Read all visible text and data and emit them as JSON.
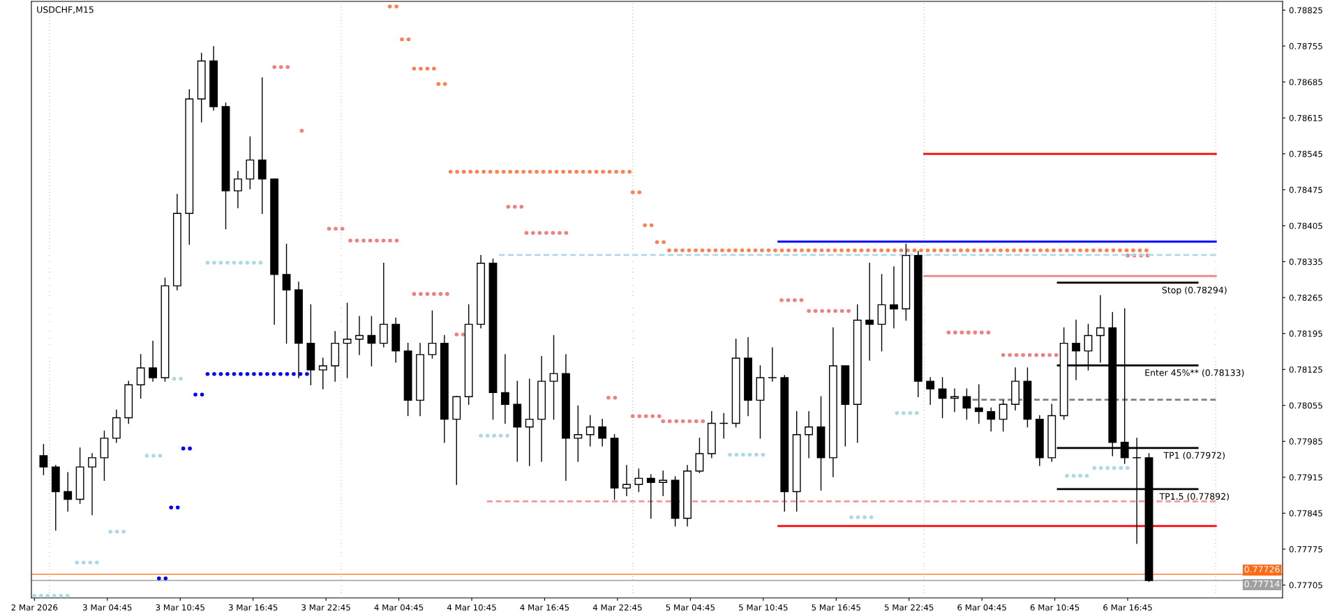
{
  "chart_data": {
    "type": "candlestick",
    "title": "USDCHF,M15",
    "color": "#000000",
    "x": [
      "2026-03-02T23:30",
      "2026-03-03T00:30",
      "2026-03-03T01:30",
      "2026-03-03T02:30",
      "2026-03-03T03:30",
      "2026-03-03T04:30",
      "2026-03-03T05:30",
      "2026-03-03T06:30",
      "2026-03-03T07:30",
      "2026-03-03T08:30",
      "2026-03-03T09:30",
      "2026-03-03T10:30",
      "2026-03-03T11:30",
      "2026-03-03T12:30",
      "2026-03-03T13:30",
      "2026-03-03T14:30",
      "2026-03-03T15:30",
      "2026-03-03T16:30",
      "2026-03-03T17:30",
      "2026-03-03T18:30",
      "2026-03-03T19:30",
      "2026-03-03T20:30",
      "2026-03-03T21:30",
      "2026-03-03T22:30",
      "2026-03-03T23:30",
      "2026-03-04T00:30",
      "2026-03-04T01:30",
      "2026-03-04T02:30",
      "2026-03-04T03:30",
      "2026-03-04T04:30",
      "2026-03-04T05:30",
      "2026-03-04T06:30",
      "2026-03-04T07:30",
      "2026-03-04T08:30",
      "2026-03-04T09:30",
      "2026-03-04T10:30",
      "2026-03-04T11:30",
      "2026-03-04T12:30",
      "2026-03-04T13:30",
      "2026-03-04T14:30",
      "2026-03-04T15:30",
      "2026-03-04T16:30",
      "2026-03-04T17:30",
      "2026-03-04T18:30",
      "2026-03-04T19:30",
      "2026-03-04T20:30",
      "2026-03-04T21:30",
      "2026-03-04T22:30",
      "2026-03-04T23:30",
      "2026-03-05T00:30",
      "2026-03-05T01:30",
      "2026-03-05T02:30",
      "2026-03-05T03:30",
      "2026-03-05T04:30",
      "2026-03-05T05:30",
      "2026-03-05T06:30",
      "2026-03-05T07:30",
      "2026-03-05T08:30",
      "2026-03-05T09:30",
      "2026-03-05T10:30",
      "2026-03-05T11:30",
      "2026-03-05T12:30",
      "2026-03-05T13:30",
      "2026-03-05T14:30",
      "2026-03-05T15:30",
      "2026-03-05T16:30",
      "2026-03-05T17:30",
      "2026-03-05T18:30",
      "2026-03-05T19:30",
      "2026-03-05T20:30",
      "2026-03-05T21:30",
      "2026-03-05T22:30",
      "2026-03-05T23:30",
      "2026-03-06T00:30",
      "2026-03-06T01:30",
      "2026-03-06T02:30",
      "2026-03-06T03:30",
      "2026-03-06T04:30",
      "2026-03-06T05:30",
      "2026-03-06T06:30",
      "2026-03-06T07:30",
      "2026-03-06T08:30",
      "2026-03-06T09:30",
      "2026-03-06T10:30",
      "2026-03-06T11:30",
      "2026-03-06T12:30",
      "2026-03-06T13:30",
      "2026-03-06T14:30",
      "2026-03-06T15:30",
      "2026-03-06T16:30",
      "2026-03-06T17:30",
      "2026-03-06T18:30"
    ],
    "ohlc": [
      [
        0.77957,
        0.77979,
        0.7792,
        0.77935
      ],
      [
        0.77935,
        0.77938,
        0.77812,
        0.77887
      ],
      [
        0.77887,
        0.77924,
        0.77849,
        0.77872
      ],
      [
        0.77872,
        0.77972,
        0.77864,
        0.77935
      ],
      [
        0.77935,
        0.77961,
        0.77842,
        0.77953
      ],
      [
        0.77953,
        0.78005,
        0.77909,
        0.77991
      ],
      [
        0.77991,
        0.78046,
        0.77983,
        0.78031
      ],
      [
        0.78031,
        0.78102,
        0.7802,
        0.78095
      ],
      [
        0.78095,
        0.78154,
        0.78069,
        0.78128
      ],
      [
        0.78128,
        0.7818,
        0.78102,
        0.78109
      ],
      [
        0.78109,
        0.78303,
        0.78102,
        0.78288
      ],
      [
        0.78288,
        0.78466,
        0.7828,
        0.78429
      ],
      [
        0.78429,
        0.7867,
        0.78369,
        0.78652
      ],
      [
        0.78652,
        0.78741,
        0.78607,
        0.78726
      ],
      [
        0.78726,
        0.78754,
        0.7863,
        0.78637
      ],
      [
        0.78637,
        0.78644,
        0.78399,
        0.78473
      ],
      [
        0.78473,
        0.78511,
        0.7844,
        0.78496
      ],
      [
        0.78496,
        0.78578,
        0.78477,
        0.78533
      ],
      [
        0.78533,
        0.78693,
        0.78429,
        0.78496
      ],
      [
        0.78496,
        0.78496,
        0.78213,
        0.7831
      ],
      [
        0.7831,
        0.78369,
        0.78176,
        0.7828
      ],
      [
        0.7828,
        0.78295,
        0.78109,
        0.78176
      ],
      [
        0.78176,
        0.78251,
        0.78095,
        0.78124
      ],
      [
        0.78124,
        0.78147,
        0.78087,
        0.78132
      ],
      [
        0.78132,
        0.78199,
        0.78102,
        0.78176
      ],
      [
        0.78176,
        0.78254,
        0.78109,
        0.78184
      ],
      [
        0.78184,
        0.78228,
        0.78154,
        0.78191
      ],
      [
        0.78191,
        0.78228,
        0.78132,
        0.78176
      ],
      [
        0.78176,
        0.78332,
        0.78169,
        0.78213
      ],
      [
        0.78213,
        0.78225,
        0.78139,
        0.78161
      ],
      [
        0.78161,
        0.78176,
        0.78035,
        0.78065
      ],
      [
        0.78065,
        0.78176,
        0.78035,
        0.78154
      ],
      [
        0.78154,
        0.78239,
        0.78147,
        0.78176
      ],
      [
        0.78176,
        0.78191,
        0.77983,
        0.78028
      ],
      [
        0.78028,
        0.78072,
        0.77901,
        0.78072
      ],
      [
        0.78072,
        0.78251,
        0.78057,
        0.78213
      ],
      [
        0.78213,
        0.78347,
        0.78206,
        0.78332
      ],
      [
        0.78332,
        0.7834,
        0.78028,
        0.7808
      ],
      [
        0.7808,
        0.78154,
        0.7802,
        0.78057
      ],
      [
        0.78057,
        0.78102,
        0.77946,
        0.78013
      ],
      [
        0.78013,
        0.78106,
        0.77938,
        0.78028
      ],
      [
        0.78028,
        0.7815,
        0.77946,
        0.78102
      ],
      [
        0.78102,
        0.78191,
        0.78028,
        0.78117
      ],
      [
        0.78117,
        0.78154,
        0.77909,
        0.77991
      ],
      [
        0.77991,
        0.78054,
        0.77946,
        0.77998
      ],
      [
        0.77998,
        0.78035,
        0.77976,
        0.78013
      ],
      [
        0.78013,
        0.78028,
        0.77976,
        0.77991
      ],
      [
        0.77991,
        0.77998,
        0.77872,
        0.77894
      ],
      [
        0.77894,
        0.77938,
        0.77879,
        0.77901
      ],
      [
        0.77901,
        0.77931,
        0.77887,
        0.77913
      ],
      [
        0.77913,
        0.7792,
        0.77835,
        0.77905
      ],
      [
        0.77905,
        0.77927,
        0.77879,
        0.77909
      ],
      [
        0.77909,
        0.77916,
        0.7782,
        0.77835
      ],
      [
        0.77835,
        0.77938,
        0.7782,
        0.77927
      ],
      [
        0.77927,
        0.77991,
        0.77924,
        0.77961
      ],
      [
        0.77961,
        0.78043,
        0.77953,
        0.7802
      ],
      [
        0.7802,
        0.78039,
        0.77991,
        0.7802
      ],
      [
        0.7802,
        0.78184,
        0.78013,
        0.78147
      ],
      [
        0.78147,
        0.78187,
        0.78035,
        0.78065
      ],
      [
        0.78065,
        0.78132,
        0.77991,
        0.78109
      ],
      [
        0.78109,
        0.78167,
        0.78102,
        0.78109
      ],
      [
        0.78109,
        0.78113,
        0.77849,
        0.77887
      ],
      [
        0.77887,
        0.78043,
        0.77849,
        0.77998
      ],
      [
        0.77998,
        0.78043,
        0.77953,
        0.78013
      ],
      [
        0.78013,
        0.78072,
        0.7789,
        0.77953
      ],
      [
        0.77953,
        0.78206,
        0.77916,
        0.78132
      ],
      [
        0.78132,
        0.78132,
        0.77976,
        0.78057
      ],
      [
        0.78057,
        0.78251,
        0.77983,
        0.78221
      ],
      [
        0.78221,
        0.78332,
        0.78143,
        0.78213
      ],
      [
        0.78213,
        0.7831,
        0.78161,
        0.78251
      ],
      [
        0.78251,
        0.78325,
        0.78206,
        0.78243
      ],
      [
        0.78243,
        0.78369,
        0.78221,
        0.78347
      ],
      [
        0.78347,
        0.78355,
        0.78072,
        0.78102
      ],
      [
        0.78102,
        0.78109,
        0.78057,
        0.78087
      ],
      [
        0.78087,
        0.78109,
        0.78031,
        0.78069
      ],
      [
        0.78069,
        0.78087,
        0.78043,
        0.78072
      ],
      [
        0.78072,
        0.78087,
        0.78028,
        0.7805
      ],
      [
        0.7805,
        0.78095,
        0.7802,
        0.78043
      ],
      [
        0.78043,
        0.7805,
        0.78005,
        0.78028
      ],
      [
        0.78028,
        0.78065,
        0.78005,
        0.78057
      ],
      [
        0.78057,
        0.78128,
        0.78046,
        0.78102
      ],
      [
        0.78102,
        0.78128,
        0.78013,
        0.78028
      ],
      [
        0.78028,
        0.78035,
        0.77938,
        0.77953
      ],
      [
        0.77953,
        0.78057,
        0.77946,
        0.78035
      ],
      [
        0.78035,
        0.78206,
        0.78028,
        0.78176
      ],
      [
        0.78176,
        0.78221,
        0.78105,
        0.78161
      ],
      [
        0.78161,
        0.78213,
        0.78124,
        0.78191
      ],
      [
        0.78191,
        0.78269,
        0.78139,
        0.78206
      ],
      [
        0.78206,
        0.78236,
        0.77957,
        0.77983
      ],
      [
        0.77983,
        0.78243,
        0.77942,
        0.77953
      ],
      [
        0.77953,
        0.77991,
        0.77786,
        0.77953
      ],
      [
        0.77953,
        0.77961,
        0.77712,
        0.77714
      ]
    ],
    "xlim": [
      "2026-03-02T22:30",
      "2026-03-07T05:30"
    ],
    "xticks": [
      {
        "value": "2026-03-02T22:45",
        "label": "2 Mar 2026"
      },
      {
        "value": "2026-03-03T04:45",
        "label": "3 Mar 04:45"
      },
      {
        "value": "2026-03-03T10:45",
        "label": "3 Mar 10:45"
      },
      {
        "value": "2026-03-03T16:45",
        "label": "3 Mar 16:45"
      },
      {
        "value": "2026-03-03T22:45",
        "label": "3 Mar 22:45"
      },
      {
        "value": "2026-03-04T04:45",
        "label": "4 Mar 04:45"
      },
      {
        "value": "2026-03-04T10:45",
        "label": "4 Mar 10:45"
      },
      {
        "value": "2026-03-04T16:45",
        "label": "4 Mar 16:45"
      },
      {
        "value": "2026-03-04T22:45",
        "label": "4 Mar 22:45"
      },
      {
        "value": "2026-03-05T04:45",
        "label": "5 Mar 04:45"
      },
      {
        "value": "2026-03-05T10:45",
        "label": "5 Mar 10:45"
      },
      {
        "value": "2026-03-05T16:45",
        "label": "5 Mar 16:45"
      },
      {
        "value": "2026-03-05T22:45",
        "label": "5 Mar 22:45"
      },
      {
        "value": "2026-03-06T04:45",
        "label": "6 Mar 04:45"
      },
      {
        "value": "2026-03-06T10:45",
        "label": "6 Mar 10:45"
      },
      {
        "value": "2026-03-06T16:45",
        "label": "6 Mar 16:45"
      }
    ],
    "ylim": [
      0.7768,
      0.78842
    ],
    "yticks": [
      0.78825,
      0.78755,
      0.78685,
      0.78615,
      0.78545,
      0.78475,
      0.78405,
      0.78335,
      0.78265,
      0.78195,
      0.78125,
      0.78055,
      0.77985,
      0.77915,
      0.77845,
      0.77775,
      0.77705
    ],
    "series": [
      {
        "type": "line",
        "line_style": "dotted",
        "color": "#ff7f50",
        "x": [
          "2026-03-04T04:00",
          "2026-03-04T04:45",
          null,
          "2026-03-04T05:00",
          "2026-03-04T05:45",
          null,
          "2026-03-04T06:00",
          "2026-03-04T07:45",
          null,
          "2026-03-04T08:00",
          "2026-03-04T08:45",
          null,
          "2026-03-04T09:00",
          "2026-03-04T23:45",
          null,
          "2026-03-05T00:00",
          "2026-03-05T00:45",
          null,
          "2026-03-05T01:00",
          "2026-03-05T01:45",
          null,
          "2026-03-05T02:00",
          "2026-03-05T02:45",
          null,
          "2026-03-05T03:00",
          "2026-03-06T18:45"
        ],
        "values": [
          0.78832,
          0.78832,
          null,
          0.78768,
          0.78768,
          null,
          0.78711,
          0.78711,
          null,
          0.78681,
          0.78681,
          null,
          0.7851,
          0.7851,
          null,
          0.7847,
          0.7847,
          null,
          0.78406,
          0.78406,
          null,
          0.78373,
          0.78373,
          null,
          0.78357,
          0.78357
        ]
      },
      {
        "type": "line",
        "line_style": "dotted",
        "color": "#f08080",
        "x": [
          "2026-03-03T18:30",
          "2026-03-03T20:00",
          null,
          "2026-03-03T20:45",
          "2026-03-03T21:15",
          null,
          "2026-03-03T23:00",
          "2026-03-04T00:30",
          null,
          "2026-03-04T00:45",
          "2026-03-04T05:00",
          null,
          "2026-03-04T06:00",
          "2026-03-04T08:45",
          null,
          "2026-03-04T09:30",
          "2026-03-04T10:15",
          null,
          "2026-03-04T13:45",
          "2026-03-04T15:00",
          null,
          "2026-03-04T15:15",
          "2026-03-04T18:45",
          null,
          "2026-03-04T22:00",
          "2026-03-04T23:00",
          null,
          "2026-03-05T00:00",
          "2026-03-05T02:15",
          null,
          "2026-03-05T02:30",
          "2026-03-05T06:00",
          null,
          "2026-03-05T12:15",
          "2026-03-05T14:15",
          null,
          "2026-03-05T14:30",
          "2026-03-05T18:00",
          null,
          "2026-03-06T02:00",
          "2026-03-06T05:30",
          null,
          "2026-03-06T06:30",
          "2026-03-06T11:00",
          null,
          "2026-03-06T16:45",
          "2026-03-06T18:30"
        ],
        "values": [
          0.78714,
          0.78714,
          null,
          0.7859,
          0.7859,
          null,
          0.78399,
          0.78399,
          null,
          0.78376,
          0.78376,
          null,
          0.78272,
          0.78272,
          null,
          0.78193,
          0.78193,
          null,
          0.78442,
          0.78442,
          null,
          0.78391,
          0.78391,
          null,
          0.7807,
          0.7807,
          null,
          0.78034,
          0.78034,
          null,
          0.78024,
          0.78024,
          null,
          0.7826,
          0.7826,
          null,
          0.78239,
          0.78239,
          null,
          0.78197,
          0.78197,
          null,
          0.78153,
          0.78153,
          null,
          0.78347,
          0.78347
        ]
      },
      {
        "type": "line",
        "line_style": "dotted",
        "color": "#0000ff",
        "x": [
          "2026-03-03T09:00",
          "2026-03-03T09:45",
          null,
          "2026-03-03T10:00",
          "2026-03-03T10:45",
          null,
          "2026-03-03T11:00",
          "2026-03-03T11:45",
          null,
          "2026-03-03T12:00",
          "2026-03-03T12:45",
          null,
          "2026-03-03T13:00",
          "2026-03-03T21:30"
        ],
        "values": [
          0.77718,
          0.77718,
          null,
          0.77856,
          0.77856,
          null,
          0.77971,
          0.77971,
          null,
          0.78076,
          0.78076,
          null,
          0.78116,
          0.78116
        ]
      },
      {
        "type": "line",
        "line_style": "dotted",
        "color": "#add8e6",
        "x": [
          "2026-03-02T22:45",
          "2026-03-03T01:45",
          null,
          "2026-03-03T02:15",
          "2026-03-03T04:00",
          null,
          "2026-03-03T05:00",
          "2026-03-03T06:15",
          null,
          "2026-03-03T08:00",
          "2026-03-03T09:15",
          null,
          "2026-03-03T10:15",
          "2026-03-03T11:15",
          null,
          "2026-03-03T13:00",
          "2026-03-03T17:45",
          null,
          "2026-03-04T11:30",
          "2026-03-04T13:45",
          null,
          "2026-03-05T08:00",
          "2026-03-05T10:45",
          null,
          "2026-03-05T18:00",
          "2026-03-05T20:00",
          null,
          "2026-03-05T21:45",
          "2026-03-05T23:45",
          null,
          "2026-03-06T11:45",
          "2026-03-06T13:45",
          null,
          "2026-03-06T14:00",
          "2026-03-06T16:45"
        ],
        "values": [
          0.77684,
          0.77684,
          null,
          0.77749,
          0.77749,
          null,
          0.77809,
          0.77809,
          null,
          0.77957,
          0.77957,
          null,
          0.78107,
          0.78107,
          null,
          0.78333,
          0.78333,
          null,
          0.77996,
          0.77996,
          null,
          0.77959,
          0.77959,
          null,
          0.77837,
          0.77837,
          null,
          0.7804,
          0.7804,
          null,
          0.77918,
          0.77918,
          null,
          0.77933,
          0.77933
        ]
      },
      {
        "type": "line",
        "line_style": "solid",
        "color": "#ff0000",
        "x": [
          "2026-03-06T00:00",
          "2026-03-07T00:00"
        ],
        "values": [
          0.78545,
          0.78545
        ]
      },
      {
        "type": "line",
        "line_style": "solid",
        "color": "#0000ff",
        "x": [
          "2026-03-05T12:00",
          "2026-03-07T00:00"
        ],
        "values": [
          0.78374,
          0.78374
        ]
      },
      {
        "type": "line",
        "line_style": "solid",
        "color": "#f08080",
        "x": [
          "2026-03-06T00:00",
          "2026-03-07T00:00"
        ],
        "values": [
          0.78307,
          0.78307
        ]
      },
      {
        "type": "line",
        "line_style": "solid",
        "color": "#ff0000",
        "x": [
          "2026-03-05T12:00",
          "2026-03-07T00:00"
        ],
        "values": [
          0.7782,
          0.7782
        ]
      },
      {
        "type": "line",
        "line_style": "dashed",
        "color": "#add8e6",
        "x": [
          "2026-03-04T13:00",
          "2026-03-07T00:00"
        ],
        "values": [
          0.78348,
          0.78348
        ]
      },
      {
        "type": "line",
        "line_style": "dashed",
        "color": "#f4a0a0",
        "x": [
          "2026-03-04T12:00",
          "2026-03-07T00:00"
        ],
        "values": [
          0.77868,
          0.77868
        ]
      },
      {
        "type": "line",
        "line_style": "dashed",
        "color": "#808080",
        "x": [
          "2026-03-06T03:15",
          "2026-03-07T00:00"
        ],
        "values": [
          0.78066,
          0.78066
        ]
      },
      {
        "type": "line",
        "line_style": "solid",
        "color": "#000000",
        "x": [
          "2026-03-06T11:00",
          "2026-03-06T22:30"
        ],
        "values": [
          0.78294,
          0.78294
        ]
      },
      {
        "type": "line",
        "line_style": "solid",
        "color": "#000000",
        "x": [
          "2026-03-06T11:00",
          "2026-03-06T22:30"
        ],
        "values": [
          0.78133,
          0.78133
        ]
      },
      {
        "type": "line",
        "line_style": "solid",
        "color": "#000000",
        "x": [
          "2026-03-06T11:00",
          "2026-03-06T22:30"
        ],
        "values": [
          0.77972,
          0.77972
        ]
      },
      {
        "type": "line",
        "line_style": "solid",
        "color": "#000000",
        "x": [
          "2026-03-06T11:00",
          "2026-03-06T22:30"
        ],
        "values": [
          0.77892,
          0.77892
        ]
      }
    ],
    "ref_lines": [
      {
        "axis": "x",
        "value": "2026-03-03T00:00",
        "line_style": "dotted",
        "color": "#000000"
      },
      {
        "axis": "x",
        "value": "2026-03-04T00:00",
        "line_style": "dotted",
        "color": "#000000"
      },
      {
        "axis": "x",
        "value": "2026-03-05T00:00",
        "line_style": "dotted",
        "color": "#000000"
      },
      {
        "axis": "x",
        "value": "2026-03-06T00:00",
        "line_style": "dotted",
        "color": "#000000"
      },
      {
        "axis": "x",
        "value": "2026-03-07T00:00",
        "line_style": "dotted",
        "color": "#000000"
      },
      {
        "axis": "y",
        "value": 0.77726,
        "label": "0.77726",
        "line_style": "solid",
        "color": "#ff6a13"
      },
      {
        "axis": "y",
        "value": 0.77714,
        "label": "0.77714",
        "line_style": "solid",
        "color": "#a0a0a0"
      }
    ],
    "annotations": [
      {
        "text": "Stop (0.78294)",
        "x": "2026-03-06T22:15",
        "y": 0.78294
      },
      {
        "text": "Enter 45%** (0.78133)",
        "x": "2026-03-06T22:15",
        "y": 0.78133
      },
      {
        "text": "TP1 (0.77972)",
        "x": "2026-03-06T22:15",
        "y": 0.77972
      },
      {
        "text": "TP1.5 (0.77892)",
        "x": "2026-03-06T22:15",
        "y": 0.77892
      }
    ]
  }
}
